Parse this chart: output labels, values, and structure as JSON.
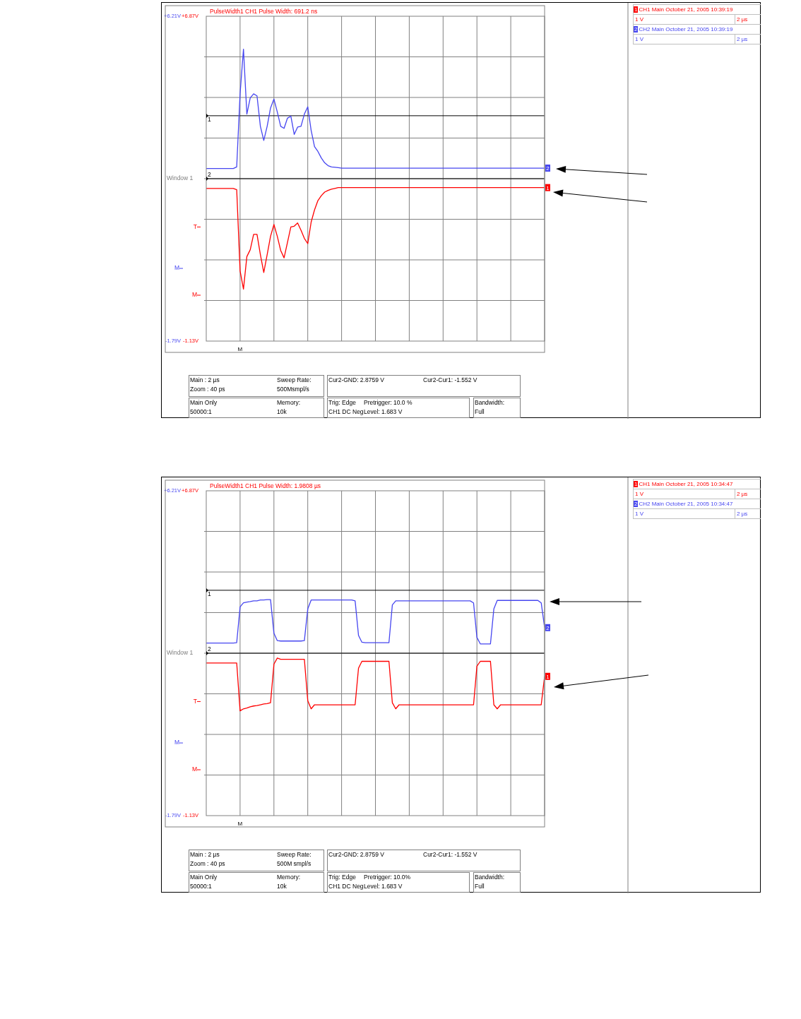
{
  "chart_data": [
    {
      "type": "line",
      "title": "PulseWidth1 CH1 Pulse Width: 691.2 ns",
      "grid": true,
      "legend": "right",
      "categories": [
        null,
        null,
        null,
        null,
        null,
        null,
        null,
        null,
        null,
        null,
        "M",
        null,
        null,
        null,
        null,
        null,
        null,
        null,
        null,
        null,
        null,
        null,
        null,
        null,
        null,
        null,
        null,
        null,
        null,
        null,
        null,
        null,
        null,
        null,
        null,
        null,
        null,
        null,
        null,
        null,
        null,
        null,
        null,
        null,
        null,
        null,
        null,
        null,
        null,
        null,
        null,
        null,
        null,
        null,
        null,
        null,
        null,
        null,
        null,
        null,
        null,
        null,
        null,
        null,
        null,
        null,
        null,
        null,
        null,
        null,
        null,
        null,
        null,
        null,
        null,
        null,
        null,
        null,
        null,
        null,
        null,
        null,
        null,
        null,
        null,
        null,
        null,
        null,
        null,
        null,
        null,
        null,
        null,
        null,
        null,
        null,
        null,
        null,
        null,
        null,
        null
      ],
      "series": [
        {
          "name": "CH1 Main October 21, 2005 10:39:19",
          "color": "#ff0000",
          "values": [
            2.63,
            2.63,
            2.63,
            2.63,
            2.63,
            2.63,
            2.63,
            2.63,
            2.63,
            2.6,
            0.6,
            0.15,
            0.95,
            1.12,
            1.5,
            1.5,
            1.0,
            0.56,
            1.0,
            1.45,
            1.74,
            1.45,
            1.1,
            0.92,
            1.3,
            1.68,
            1.7,
            1.78,
            1.6,
            1.4,
            1.27,
            1.8,
            2.1,
            2.33,
            2.45,
            2.54,
            2.58,
            2.61,
            2.63,
            2.65,
            2.65,
            2.65,
            2.65,
            2.65,
            2.65,
            2.65,
            2.65,
            2.65,
            2.65,
            2.65,
            2.65,
            2.65,
            2.65,
            2.65,
            2.65,
            2.65,
            2.65,
            2.65,
            2.65,
            2.65,
            2.65,
            2.65,
            2.65,
            2.65,
            2.65,
            2.65,
            2.65,
            2.65,
            2.65,
            2.65,
            2.65,
            2.65,
            2.65,
            2.65,
            2.65,
            2.65,
            2.65,
            2.65,
            2.65,
            2.65,
            2.65,
            2.65,
            2.65,
            2.65,
            2.65,
            2.65,
            2.65,
            2.65,
            2.65,
            2.65,
            2.65,
            2.65,
            2.65,
            2.65,
            2.65,
            2.65,
            2.65,
            2.65,
            2.65,
            2.65,
            2.65
          ]
        },
        {
          "name": "CH2 Main October 21, 2005 10:39:19",
          "color": "#4646f0",
          "axis": "y2",
          "values": [
            2.46,
            2.46,
            2.46,
            2.46,
            2.46,
            2.46,
            2.46,
            2.46,
            2.46,
            2.5,
            4.3,
            5.4,
            3.8,
            4.2,
            4.3,
            4.25,
            3.5,
            3.15,
            3.5,
            3.95,
            4.17,
            3.85,
            3.5,
            3.45,
            3.7,
            3.75,
            3.3,
            3.48,
            3.5,
            3.8,
            3.98,
            3.4,
            3.0,
            2.88,
            2.72,
            2.6,
            2.53,
            2.5,
            2.49,
            2.48,
            2.47,
            2.47,
            2.47,
            2.47,
            2.47,
            2.47,
            2.47,
            2.47,
            2.47,
            2.47,
            2.47,
            2.47,
            2.47,
            2.47,
            2.47,
            2.47,
            2.47,
            2.47,
            2.47,
            2.47,
            2.47,
            2.47,
            2.47,
            2.47,
            2.47,
            2.47,
            2.47,
            2.47,
            2.47,
            2.47,
            2.47,
            2.47,
            2.47,
            2.47,
            2.47,
            2.47,
            2.47,
            2.47,
            2.47,
            2.47,
            2.47,
            2.47,
            2.47,
            2.47,
            2.47,
            2.47,
            2.47,
            2.47,
            2.47,
            2.47,
            2.47,
            2.47,
            2.47,
            2.47,
            2.47,
            2.47,
            2.47,
            2.47,
            2.47,
            2.47,
            2.47
          ]
        }
      ],
      "ylim": [
        -1.13,
        6.87
      ],
      "yticks": [
        {
          "value": 6.87,
          "label": "+6.87V"
        },
        {
          "value": 5.87,
          "label": null
        },
        {
          "value": 4.87,
          "label": null
        },
        {
          "value": 3.87,
          "label": null
        },
        {
          "value": 2.87,
          "label": null
        },
        {
          "value": 1.87,
          "label": null
        },
        {
          "value": 1.68,
          "label": "T"
        },
        {
          "value": 0.87,
          "label": null
        },
        {
          "value": 0,
          "label": "M"
        },
        {
          "value": -0.13,
          "label": null
        },
        {
          "value": -1.13,
          "label": "-1.13V"
        }
      ],
      "y2lim": [
        -1.79,
        6.21
      ],
      "y2ticks": [
        {
          "value": 6.21,
          "label": "+6.21V"
        },
        {
          "value": 0,
          "label": "M"
        },
        {
          "value": -1.79,
          "label": "-1.79V"
        }
      ],
      "ref_lines": [
        {
          "axis": "y",
          "value": 4.42,
          "color": "#000000"
        },
        {
          "axis": "y2",
          "value": 2.21,
          "color": "#000000"
        }
      ],
      "annotations": [
        "Window 1",
        "1 V",
        "2 µs",
        "1 V",
        "2 µs",
        "Main : 2 µs",
        "Zoom : 40 ps",
        "Sweep Rate:",
        "500Msmpl/s",
        "Cur2-GND: 2.8759 V",
        "Cur2-Cur1: -1.552 V",
        "Main Only",
        "50000:1",
        "Memory:",
        "10k",
        "Trig: Edge",
        "Pretrigger: 10.0 %",
        "CH1 DC Neg",
        "Level: 1.683 V",
        "Bandwidth:",
        "Full",
        "1",
        "2"
      ]
    },
    {
      "type": "line",
      "title": "PulseWidth1 CH1 Pulse Width: 1.9808 µs",
      "grid": true,
      "legend": "right",
      "categories": [
        null,
        null,
        null,
        null,
        null,
        null,
        null,
        null,
        null,
        null,
        "M",
        null,
        null,
        null,
        null,
        null,
        null,
        null,
        null,
        null,
        null,
        null,
        null,
        null,
        null,
        null,
        null,
        null,
        null,
        null,
        null,
        null,
        null,
        null,
        null,
        null,
        null,
        null,
        null,
        null,
        null,
        null,
        null,
        null,
        null,
        null,
        null,
        null,
        null,
        null,
        null,
        null,
        null,
        null,
        null,
        null,
        null,
        null,
        null,
        null,
        null,
        null,
        null,
        null,
        null,
        null,
        null,
        null,
        null,
        null,
        null,
        null,
        null,
        null,
        null,
        null,
        null,
        null,
        null,
        null,
        null,
        null,
        null,
        null,
        null,
        null,
        null,
        null,
        null,
        null,
        null,
        null,
        null,
        null,
        null,
        null,
        null,
        null,
        null,
        null,
        null
      ],
      "series": [
        {
          "name": "CH1 Main October 21, 2005 10:34:47",
          "color": "#ff0000",
          "values": [
            2.63,
            2.63,
            2.63,
            2.63,
            2.63,
            2.63,
            2.63,
            2.63,
            2.63,
            2.63,
            1.45,
            1.5,
            1.52,
            1.55,
            1.57,
            1.58,
            1.6,
            1.62,
            1.63,
            1.65,
            2.6,
            2.75,
            2.72,
            2.72,
            2.72,
            2.72,
            2.72,
            2.72,
            2.72,
            2.72,
            1.7,
            1.5,
            1.6,
            1.6,
            1.6,
            1.6,
            1.6,
            1.6,
            1.6,
            1.6,
            1.6,
            1.6,
            1.6,
            1.6,
            1.6,
            2.5,
            2.67,
            2.67,
            2.67,
            2.67,
            2.67,
            2.67,
            2.67,
            2.67,
            2.67,
            1.65,
            1.5,
            1.6,
            1.6,
            1.6,
            1.6,
            1.6,
            1.6,
            1.6,
            1.6,
            1.6,
            1.6,
            1.6,
            1.6,
            1.6,
            1.6,
            1.6,
            1.6,
            1.6,
            1.6,
            1.6,
            1.6,
            1.6,
            1.6,
            1.6,
            2.55,
            2.67,
            2.67,
            2.67,
            2.67,
            1.6,
            1.5,
            1.6,
            1.6,
            1.6,
            1.6,
            1.6,
            1.6,
            1.6,
            1.6,
            1.6,
            1.6,
            1.6,
            1.6,
            1.6,
            2.3
          ]
        },
        {
          "name": "CH2 Main October 21, 2005 10:34:47",
          "color": "#4646f0",
          "axis": "y2",
          "values": [
            2.46,
            2.46,
            2.46,
            2.46,
            2.46,
            2.46,
            2.46,
            2.46,
            2.46,
            2.47,
            3.35,
            3.45,
            3.47,
            3.48,
            3.5,
            3.5,
            3.52,
            3.52,
            3.53,
            3.53,
            2.7,
            2.52,
            2.51,
            2.51,
            2.51,
            2.51,
            2.51,
            2.51,
            2.51,
            2.52,
            3.3,
            3.52,
            3.52,
            3.52,
            3.52,
            3.52,
            3.52,
            3.52,
            3.52,
            3.52,
            3.52,
            3.52,
            3.52,
            3.52,
            3.5,
            2.65,
            2.48,
            2.47,
            2.47,
            2.47,
            2.47,
            2.47,
            2.47,
            2.47,
            2.47,
            3.4,
            3.5,
            3.5,
            3.5,
            3.5,
            3.5,
            3.5,
            3.5,
            3.5,
            3.5,
            3.5,
            3.5,
            3.5,
            3.5,
            3.5,
            3.5,
            3.5,
            3.5,
            3.5,
            3.5,
            3.5,
            3.5,
            3.5,
            3.5,
            3.45,
            2.6,
            2.44,
            2.44,
            2.44,
            2.44,
            3.3,
            3.51,
            3.51,
            3.51,
            3.51,
            3.51,
            3.51,
            3.51,
            3.51,
            3.51,
            3.51,
            3.51,
            3.51,
            3.51,
            3.45,
            2.84
          ]
        }
      ],
      "ylim": [
        -1.13,
        6.87
      ],
      "yticks": [
        {
          "value": 6.87,
          "label": "+6.87V"
        },
        {
          "value": 5.87,
          "label": null
        },
        {
          "value": 4.87,
          "label": null
        },
        {
          "value": 3.87,
          "label": null
        },
        {
          "value": 2.87,
          "label": null
        },
        {
          "value": 1.87,
          "label": null
        },
        {
          "value": 1.68,
          "label": "T"
        },
        {
          "value": 0.87,
          "label": null
        },
        {
          "value": 0,
          "label": "M"
        },
        {
          "value": -0.13,
          "label": null
        },
        {
          "value": -1.13,
          "label": "-1.13V"
        }
      ],
      "y2lim": [
        -1.79,
        6.21
      ],
      "y2ticks": [
        {
          "value": 6.21,
          "label": "+6.21V"
        },
        {
          "value": 0,
          "label": "M"
        },
        {
          "value": -1.79,
          "label": "-1.79V"
        }
      ],
      "ref_lines": [
        {
          "axis": "y",
          "value": 4.42,
          "color": "#000000"
        },
        {
          "axis": "y2",
          "value": 2.21,
          "color": "#000000"
        }
      ],
      "annotations": [
        "Window 1",
        "1 V",
        "2 µs",
        "1 V",
        "2 µs",
        "Main : 2 µs",
        "Zoom : 40 ps",
        "Sweep Rate:",
        "500M smpl/s",
        "Cur2-GND: 2.8759 V",
        "Cur2-Cur1: -1.552 V",
        "Main Only",
        "50000:1",
        "Memory:",
        "10k",
        "Trig: Edge",
        "Pretrigger: 10.0%",
        "CH1 DC Neg",
        "Level: 1.683 V",
        "Bandwidth:",
        "Full",
        "1",
        "2"
      ]
    }
  ]
}
